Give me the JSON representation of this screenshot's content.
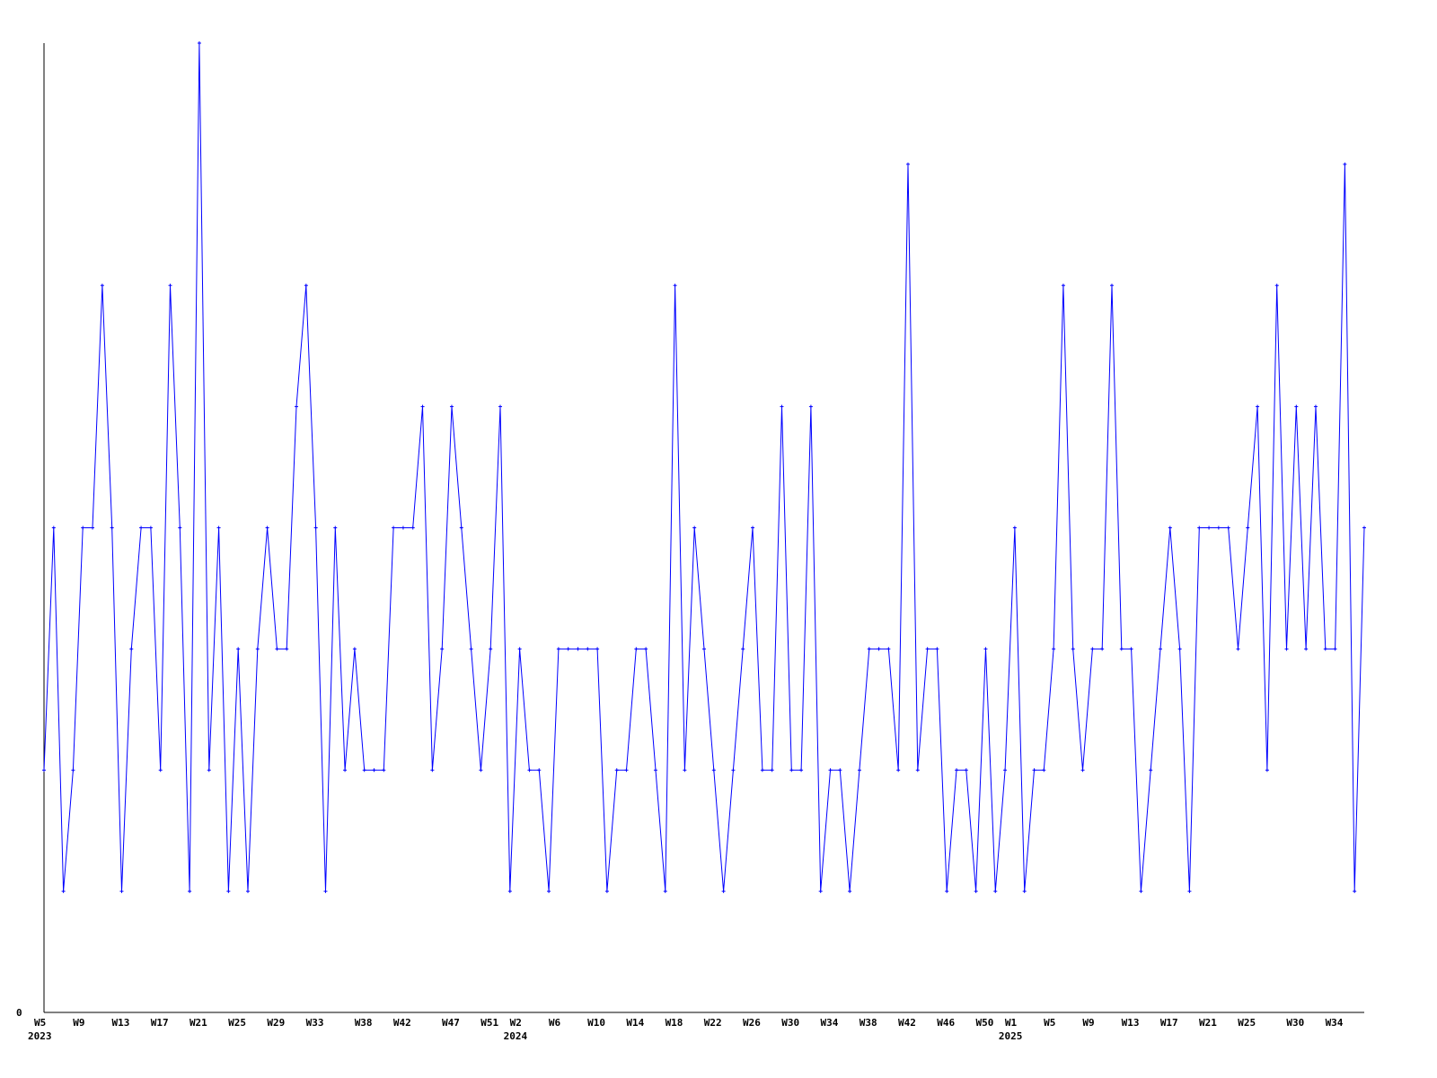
{
  "chart_data": {
    "type": "line",
    "title": "",
    "xlabel": "",
    "ylabel": "",
    "ylim": [
      0,
      8
    ],
    "y_tick_labels": [
      "0"
    ],
    "grid": false,
    "line_color": "#0000ff",
    "axis_color": "#000000",
    "start": {
      "year": 2023,
      "week": 5
    },
    "x_tick_labels": [
      {
        "week": "W5",
        "year": "2023"
      },
      {
        "week": "W9"
      },
      {
        "week": "W13"
      },
      {
        "week": "W17"
      },
      {
        "week": "W21"
      },
      {
        "week": "W25"
      },
      {
        "week": "W29"
      },
      {
        "week": "W33"
      },
      {
        "week": "W38"
      },
      {
        "week": "W42"
      },
      {
        "week": "W47"
      },
      {
        "week": "W51"
      },
      {
        "week": "W2",
        "year": "2024"
      },
      {
        "week": "W6"
      },
      {
        "week": "W10"
      },
      {
        "week": "W14"
      },
      {
        "week": "W18"
      },
      {
        "week": "W22"
      },
      {
        "week": "W26"
      },
      {
        "week": "W30"
      },
      {
        "week": "W34"
      },
      {
        "week": "W38"
      },
      {
        "week": "W42"
      },
      {
        "week": "W46"
      },
      {
        "week": "W50"
      },
      {
        "week": "W1",
        "year": "2025"
      },
      {
        "week": "W5"
      },
      {
        "week": "W9"
      },
      {
        "week": "W13"
      },
      {
        "week": "W17"
      },
      {
        "week": "W21"
      },
      {
        "week": "W25"
      },
      {
        "week": "W30"
      },
      {
        "week": "W34"
      }
    ],
    "series": [
      {
        "values": [
          2,
          4,
          1,
          2,
          4,
          4,
          6,
          4,
          1,
          3,
          4,
          4,
          2,
          6,
          4,
          1,
          8,
          2,
          4,
          1,
          3,
          1,
          3,
          4,
          3,
          3,
          5,
          6,
          4,
          1,
          4,
          2,
          3,
          2,
          2,
          2,
          4,
          4,
          4,
          5,
          2,
          3,
          5,
          4,
          3,
          2,
          3,
          5,
          1,
          3,
          2,
          2,
          1,
          3,
          3,
          3,
          3,
          3,
          1,
          2,
          2,
          3,
          3,
          2,
          1,
          6,
          2,
          4,
          3,
          2,
          1,
          2,
          3,
          4,
          2,
          2,
          5,
          2,
          2,
          5,
          1,
          2,
          2,
          1,
          2,
          3,
          3,
          3,
          2,
          7,
          2,
          3,
          3,
          1,
          2,
          2,
          1,
          3,
          1,
          2,
          4,
          1,
          2,
          2,
          3,
          6,
          3,
          2,
          3,
          3,
          6,
          3,
          3,
          1,
          2,
          3,
          4,
          3,
          1,
          4,
          4,
          4,
          4,
          3,
          4,
          5,
          2,
          6,
          3,
          5,
          3,
          5,
          3,
          3,
          7,
          1,
          4
        ]
      }
    ]
  }
}
